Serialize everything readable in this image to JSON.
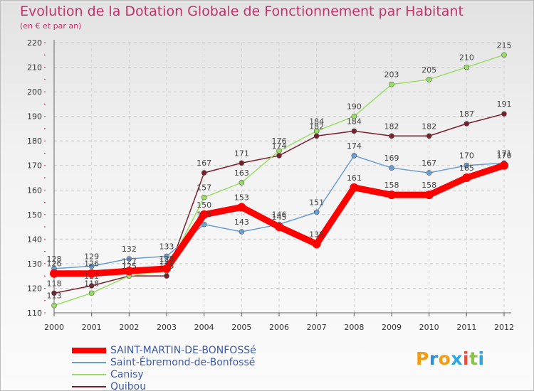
{
  "chart_data": {
    "type": "line",
    "title": "Evolution de la Dotation Globale de Fonctionnement par Habitant",
    "subtitle": "(en € et par an)",
    "xlabel": "",
    "ylabel": "",
    "ylim": [
      110,
      220
    ],
    "yticks": [
      110,
      120,
      130,
      140,
      150,
      160,
      170,
      180,
      190,
      200,
      210,
      220
    ],
    "grid": true,
    "categories": [
      "2000",
      "2001",
      "2002",
      "2003",
      "2004",
      "2005",
      "2006",
      "2007",
      "2008",
      "2009",
      "2010",
      "2011",
      "2012"
    ],
    "series": [
      {
        "name": "SAINT-MARTIN-DE-BONFOSSé",
        "color": "#ff0000",
        "values": [
          126,
          126,
          127,
          128,
          150,
          153,
          145,
          138,
          161,
          158,
          158,
          165,
          170
        ]
      },
      {
        "name": "Saint-Ébremond-de-Bonfossé",
        "color": "#6a9fd4",
        "values": [
          128,
          129,
          132,
          133,
          146,
          143,
          146,
          151,
          174,
          169,
          167,
          170,
          171
        ]
      },
      {
        "name": "Canisy",
        "color": "#99dd66",
        "values": [
          113,
          118,
          125,
          127,
          157,
          163,
          176,
          184,
          190,
          203,
          205,
          210,
          215
        ]
      },
      {
        "name": "Quibou",
        "color": "#7a1f2b",
        "values": [
          118,
          121,
          125,
          125,
          167,
          171,
          174,
          182,
          184,
          182,
          182,
          187,
          191
        ]
      }
    ],
    "legend_position": "bottom-left"
  },
  "logo": {
    "text": "Proxiti",
    "colors": [
      "#f39c12",
      "#2f8fd6",
      "#f39c12",
      "#2ea7e0",
      "#e74c3c",
      "#8bc34a",
      "#2ea7e0"
    ]
  }
}
